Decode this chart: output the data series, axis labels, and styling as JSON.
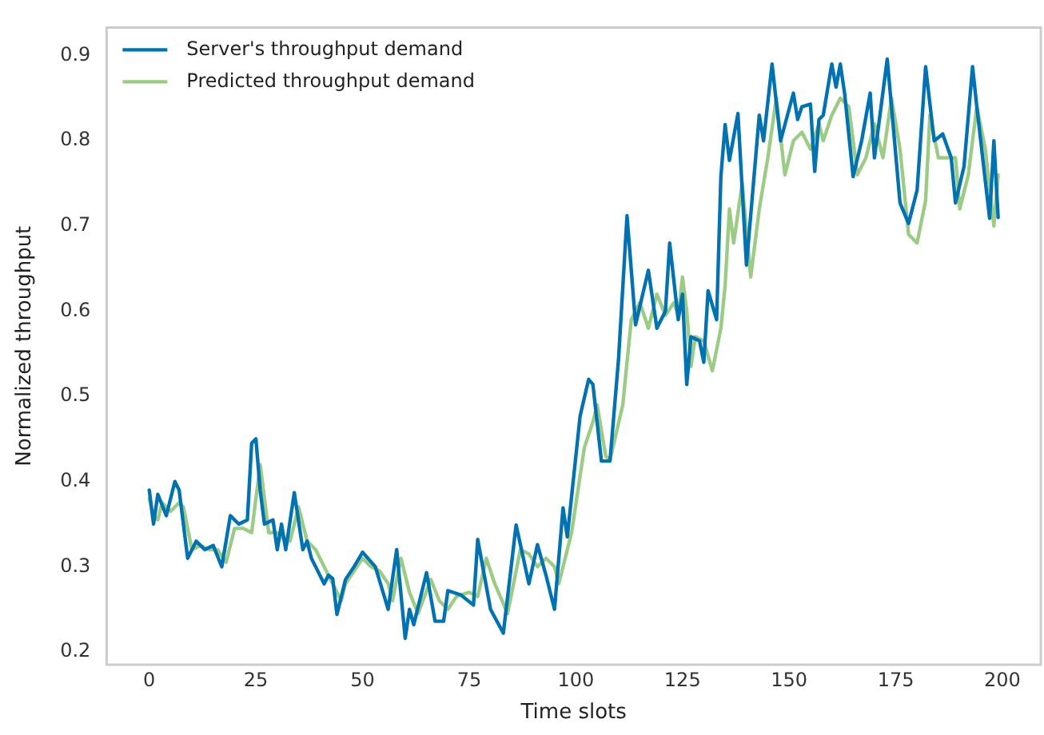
{
  "chart_data": {
    "type": "line",
    "xlabel": "Time slots",
    "ylabel": "Normalized throughput",
    "xlim": [
      -10,
      209
    ],
    "ylim": [
      0.185,
      0.933
    ],
    "xticks": [
      0,
      25,
      50,
      75,
      100,
      125,
      150,
      175,
      200
    ],
    "yticks": [
      {
        "value": 0.2,
        "label": "0.2"
      },
      {
        "value": 0.3,
        "label": "0.3"
      },
      {
        "value": 0.4,
        "label": "0.4"
      },
      {
        "value": 0.5,
        "label": "0.5"
      },
      {
        "value": 0.6,
        "label": "0.6"
      },
      {
        "value": 0.7,
        "label": "0.7"
      },
      {
        "value": 0.8,
        "label": "0.8"
      },
      {
        "value": 0.9,
        "label": "0.9"
      }
    ],
    "grid": false,
    "legend": "top left",
    "marker": "none",
    "line_style": "solid",
    "series": [
      {
        "name": "Server's throughput demand",
        "color": "#0072b2",
        "x": [
          0,
          1,
          2,
          4,
          6,
          7,
          9,
          11,
          13,
          15,
          17,
          19,
          21,
          23,
          24,
          25,
          26,
          27,
          29,
          30,
          31,
          32,
          34,
          36,
          37,
          38,
          39,
          41,
          42,
          43,
          44,
          46,
          48,
          50,
          53,
          56,
          58,
          60,
          61,
          62,
          65,
          67,
          69,
          70,
          73,
          76,
          77,
          80,
          83,
          86,
          89,
          91,
          93,
          95,
          97,
          98,
          101,
          103,
          104,
          106,
          108,
          110,
          112,
          114,
          117,
          119,
          121,
          122,
          124,
          125,
          126,
          127,
          129,
          130,
          131,
          133,
          134,
          135,
          136,
          138,
          140,
          143,
          144,
          146,
          148,
          151,
          152,
          153,
          155,
          156,
          157,
          158,
          160,
          161,
          162,
          163,
          165,
          167,
          169,
          170,
          173,
          176,
          178,
          180,
          182,
          184,
          186,
          188,
          189,
          191,
          193,
          194,
          197,
          198,
          199
        ],
        "values": [
          0.39,
          0.35,
          0.385,
          0.36,
          0.4,
          0.39,
          0.31,
          0.33,
          0.32,
          0.325,
          0.3,
          0.36,
          0.35,
          0.355,
          0.445,
          0.45,
          0.39,
          0.35,
          0.355,
          0.32,
          0.35,
          0.32,
          0.387,
          0.32,
          0.33,
          0.31,
          0.3,
          0.28,
          0.29,
          0.286,
          0.244,
          0.285,
          0.3,
          0.317,
          0.3,
          0.25,
          0.32,
          0.216,
          0.25,
          0.232,
          0.293,
          0.236,
          0.236,
          0.272,
          0.267,
          0.255,
          0.332,
          0.25,
          0.222,
          0.349,
          0.28,
          0.326,
          0.29,
          0.25,
          0.369,
          0.335,
          0.477,
          0.52,
          0.514,
          0.424,
          0.424,
          0.543,
          0.712,
          0.584,
          0.648,
          0.58,
          0.6,
          0.68,
          0.59,
          0.62,
          0.514,
          0.57,
          0.565,
          0.54,
          0.624,
          0.59,
          0.758,
          0.819,
          0.777,
          0.832,
          0.654,
          0.83,
          0.8,
          0.89,
          0.8,
          0.856,
          0.825,
          0.84,
          0.843,
          0.764,
          0.825,
          0.83,
          0.89,
          0.863,
          0.89,
          0.856,
          0.758,
          0.8,
          0.856,
          0.78,
          0.896,
          0.727,
          0.703,
          0.742,
          0.887,
          0.8,
          0.808,
          0.78,
          0.727,
          0.77,
          0.887,
          0.84,
          0.709,
          0.8,
          0.71
        ]
      },
      {
        "name": "Predicted throughput demand",
        "color": "#9ccb86",
        "x": [
          0,
          1,
          2,
          3,
          5,
          7,
          8,
          10,
          12,
          14,
          16,
          18,
          20,
          22,
          24,
          26,
          27,
          28,
          30,
          32,
          33,
          35,
          37,
          39,
          41,
          43,
          45,
          46,
          48,
          50,
          52,
          54,
          56,
          57,
          59,
          61,
          63,
          66,
          68,
          70,
          72,
          75,
          77,
          79,
          81,
          84,
          87,
          89,
          91,
          93,
          95,
          96,
          98,
          99,
          102,
          104,
          105,
          107,
          108,
          111,
          113,
          115,
          117,
          119,
          121,
          123,
          124,
          125,
          126,
          127,
          128,
          130,
          132,
          134,
          135,
          136,
          137,
          139,
          141,
          143,
          145,
          147,
          149,
          151,
          153,
          155,
          157,
          158,
          160,
          162,
          164,
          166,
          168,
          170,
          172,
          174,
          176,
          178,
          180,
          182,
          183,
          185,
          187,
          189,
          190,
          192,
          194,
          196,
          198,
          199
        ],
        "values": [
          0.38,
          0.36,
          0.355,
          0.375,
          0.365,
          0.375,
          0.37,
          0.32,
          0.325,
          0.32,
          0.32,
          0.305,
          0.345,
          0.345,
          0.34,
          0.42,
          0.38,
          0.34,
          0.34,
          0.33,
          0.33,
          0.37,
          0.33,
          0.32,
          0.3,
          0.28,
          0.26,
          0.28,
          0.295,
          0.31,
          0.3,
          0.295,
          0.28,
          0.26,
          0.31,
          0.27,
          0.245,
          0.285,
          0.26,
          0.25,
          0.265,
          0.27,
          0.265,
          0.31,
          0.28,
          0.245,
          0.32,
          0.315,
          0.3,
          0.31,
          0.3,
          0.28,
          0.32,
          0.34,
          0.44,
          0.47,
          0.49,
          0.43,
          0.425,
          0.49,
          0.59,
          0.61,
          0.58,
          0.62,
          0.595,
          0.61,
          0.595,
          0.64,
          0.6,
          0.535,
          0.57,
          0.565,
          0.53,
          0.58,
          0.63,
          0.72,
          0.68,
          0.75,
          0.64,
          0.72,
          0.78,
          0.85,
          0.76,
          0.8,
          0.81,
          0.79,
          0.82,
          0.8,
          0.83,
          0.85,
          0.84,
          0.76,
          0.78,
          0.82,
          0.78,
          0.85,
          0.79,
          0.69,
          0.68,
          0.73,
          0.83,
          0.78,
          0.78,
          0.78,
          0.72,
          0.76,
          0.84,
          0.79,
          0.7,
          0.76
        ]
      }
    ]
  }
}
